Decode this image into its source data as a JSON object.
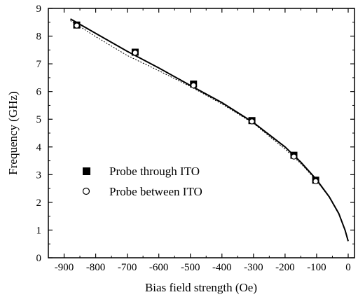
{
  "chart_data": {
    "type": "scatter",
    "xlabel": "Bias field strength (Oe)",
    "ylabel": "Frequency (GHz)",
    "xlim": [
      -950,
      20
    ],
    "ylim": [
      0,
      9
    ],
    "xticks": [
      -900,
      -800,
      -700,
      -600,
      -500,
      -400,
      -300,
      -200,
      -100,
      0
    ],
    "yticks": [
      0,
      1,
      2,
      3,
      4,
      5,
      6,
      7,
      8,
      9
    ],
    "grid": false,
    "legend_position": "center-left",
    "series": [
      {
        "name": "Probe through ITO",
        "marker": "filled-square",
        "color": "#000000",
        "points": [
          {
            "x": -860,
            "y": 8.4
          },
          {
            "x": -675,
            "y": 7.42
          },
          {
            "x": -490,
            "y": 6.27
          },
          {
            "x": -305,
            "y": 4.95
          },
          {
            "x": -172,
            "y": 3.7
          },
          {
            "x": -103,
            "y": 2.8
          }
        ]
      },
      {
        "name": "Probe between ITO",
        "marker": "open-circle",
        "color": "#000000",
        "points": [
          {
            "x": -860,
            "y": 8.38
          },
          {
            "x": -675,
            "y": 7.4
          },
          {
            "x": -490,
            "y": 6.22
          },
          {
            "x": -305,
            "y": 4.92
          },
          {
            "x": -172,
            "y": 3.65
          },
          {
            "x": -103,
            "y": 2.76
          }
        ]
      }
    ],
    "fit_curves": [
      {
        "style": "solid",
        "color": "#000000",
        "points": [
          {
            "x": -880,
            "y": 8.62
          },
          {
            "x": -800,
            "y": 8.1
          },
          {
            "x": -700,
            "y": 7.45
          },
          {
            "x": -600,
            "y": 6.85
          },
          {
            "x": -500,
            "y": 6.22
          },
          {
            "x": -400,
            "y": 5.6
          },
          {
            "x": -300,
            "y": 4.88
          },
          {
            "x": -200,
            "y": 4.0
          },
          {
            "x": -150,
            "y": 3.45
          },
          {
            "x": -100,
            "y": 2.82
          },
          {
            "x": -60,
            "y": 2.2
          },
          {
            "x": -30,
            "y": 1.6
          },
          {
            "x": -10,
            "y": 1.0
          },
          {
            "x": 0,
            "y": 0.6
          }
        ]
      },
      {
        "style": "dotted",
        "color": "#000000",
        "points": [
          {
            "x": -880,
            "y": 8.56
          },
          {
            "x": -800,
            "y": 7.98
          },
          {
            "x": -700,
            "y": 7.3
          },
          {
            "x": -600,
            "y": 6.75
          },
          {
            "x": -500,
            "y": 6.18
          },
          {
            "x": -400,
            "y": 5.55
          },
          {
            "x": -300,
            "y": 4.85
          },
          {
            "x": -200,
            "y": 3.92
          },
          {
            "x": -150,
            "y": 3.4
          },
          {
            "x": -100,
            "y": 2.78
          },
          {
            "x": -60,
            "y": 2.18
          },
          {
            "x": -30,
            "y": 1.58
          },
          {
            "x": -10,
            "y": 1.0
          },
          {
            "x": 0,
            "y": 0.6
          }
        ]
      }
    ]
  }
}
